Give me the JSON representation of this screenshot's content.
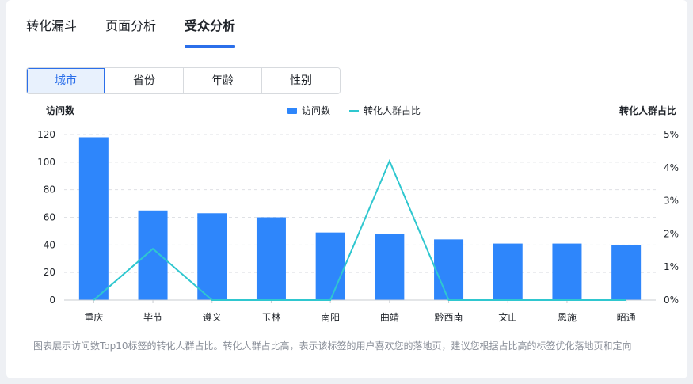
{
  "tabs": [
    {
      "label": "转化漏斗",
      "active": false
    },
    {
      "label": "页面分析",
      "active": false
    },
    {
      "label": "受众分析",
      "active": true
    }
  ],
  "segments": [
    {
      "label": "城市",
      "active": true
    },
    {
      "label": "省份",
      "active": false
    },
    {
      "label": "年龄",
      "active": false
    },
    {
      "label": "性别",
      "active": false
    }
  ],
  "footnote": "图表展示访问数Top10标签的转化人群占比。转化人群占比高，表示该标签的用户喜欢您的落地页，建议您根据占比高的标签优化落地页和定向",
  "colors": {
    "bar": "#2e86fb",
    "line": "#2fc7cf",
    "accent": "#2b6fea"
  },
  "chart_data": {
    "type": "bar",
    "categories": [
      "重庆",
      "毕节",
      "遵义",
      "玉林",
      "南阳",
      "曲靖",
      "黔西南",
      "文山",
      "恩施",
      "昭通"
    ],
    "series": [
      {
        "name": "访问数",
        "type": "bar",
        "axis": "left",
        "values": [
          118,
          65,
          63,
          60,
          49,
          48,
          44,
          41,
          41,
          40
        ]
      },
      {
        "name": "转化人群占比",
        "type": "line",
        "axis": "right",
        "values": [
          0,
          1.55,
          0,
          0,
          0,
          4.2,
          0,
          0,
          0,
          0
        ]
      }
    ],
    "ylabel": "访问数",
    "ylabel_right": "转化人群占比",
    "ylim": [
      0,
      120
    ],
    "yticks": [
      "0",
      "20",
      "40",
      "60",
      "80",
      "100",
      "120"
    ],
    "ylim_right": [
      0,
      5
    ],
    "yticks_right": [
      "0%",
      "1%",
      "2%",
      "3%",
      "4%",
      "5%"
    ],
    "legend_position": "top-center",
    "grid": true
  }
}
